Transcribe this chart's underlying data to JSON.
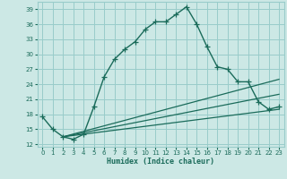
{
  "xlabel": "Humidex (Indice chaleur)",
  "ylabel": "",
  "bg_color": "#cce8e5",
  "grid_color": "#99ccca",
  "line_color": "#1a6b5a",
  "xlim": [
    -0.5,
    23.5
  ],
  "ylim": [
    11.5,
    40.5
  ],
  "yticks": [
    12,
    15,
    18,
    21,
    24,
    27,
    30,
    33,
    36,
    39
  ],
  "xticks": [
    0,
    1,
    2,
    3,
    4,
    5,
    6,
    7,
    8,
    9,
    10,
    11,
    12,
    13,
    14,
    15,
    16,
    17,
    18,
    19,
    20,
    21,
    22,
    23
  ],
  "line1_x": [
    0,
    1,
    2,
    3,
    4,
    5,
    6,
    7,
    8,
    9,
    10,
    11,
    12,
    13,
    14,
    15,
    16,
    17,
    18,
    19,
    20,
    21,
    22,
    23
  ],
  "line1_y": [
    17.5,
    15.0,
    13.5,
    13.0,
    14.0,
    19.5,
    25.5,
    29.0,
    31.0,
    32.5,
    35.0,
    36.5,
    36.5,
    38.0,
    39.5,
    36.0,
    31.5,
    27.5,
    27.0,
    24.5,
    24.5,
    20.5,
    19.0,
    19.5
  ],
  "line2_x": [
    2,
    23
  ],
  "line2_y": [
    13.5,
    25.0
  ],
  "line3_x": [
    2,
    23
  ],
  "line3_y": [
    13.5,
    22.0
  ],
  "line4_x": [
    2,
    23
  ],
  "line4_y": [
    13.5,
    19.0
  ]
}
